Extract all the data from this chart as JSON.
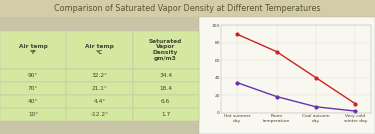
{
  "title": "Comparison of Saturated Vapor Density at Different Temperatures",
  "title_bg": "#d4cca8",
  "table_header_bg": "#d4e8a0",
  "table_cell_bg": "#d4e8a0",
  "table_row_label_bg": "#f0f0e8",
  "outer_bg": "#c8c4a8",
  "chart_bg": "#f8f8f0",
  "row_labels": [
    "Hot summer day",
    "Room temperature",
    "Cool autumn day",
    "Very cold winter day"
  ],
  "col_headers": [
    "Air temp\n°F",
    "Air temp\n°C",
    "Saturated\nVapor\nDensity\ngm/m3"
  ],
  "air_temp_f": [
    "90°",
    "70°",
    "40°",
    "10°"
  ],
  "air_temp_c": [
    "32.2°",
    "21.1°",
    "4.4°",
    "-12.2°"
  ],
  "vapor_density": [
    "34.4",
    "18.4",
    "6.6",
    "1.7"
  ],
  "air_temp_f_num": [
    90,
    70,
    40,
    10
  ],
  "vapor_density_num": [
    34.4,
    18.4,
    6.6,
    1.7
  ],
  "x_labels": [
    "Hot summer\nday",
    "Room\ntemperature",
    "Cool autumn\nday",
    "Very cold\nwinter day"
  ],
  "line_color_temp": "#cc2222",
  "line_color_vapor": "#6633aa",
  "legend_label_temp": "Air temp °F",
  "legend_label_vapor": "Saturated Vapor Density  gm/m3",
  "ylim": [
    0,
    100
  ],
  "yticks": [
    0,
    20,
    40,
    60,
    80,
    100
  ],
  "grid_color": "#ddddcc",
  "title_color": "#555533",
  "table_text_color": "#444433",
  "table_header_text_color": "#444433"
}
